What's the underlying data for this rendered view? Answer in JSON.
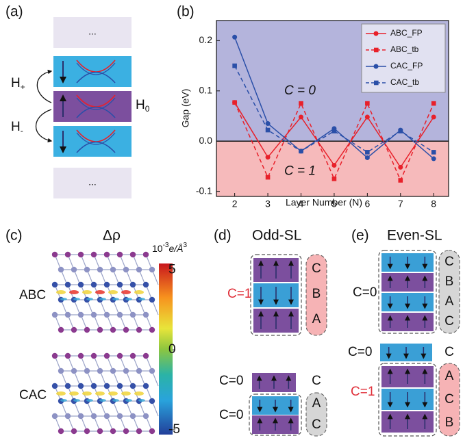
{
  "panel_a": {
    "label": "(a)",
    "top_ellipsis": "...",
    "bottom_ellipsis": "...",
    "h_plus": {
      "main": "H",
      "sub": "+"
    },
    "h_zero": {
      "main": "H",
      "sub": "0"
    },
    "h_minus": {
      "main": "H",
      "sub": "-"
    }
  },
  "chart_data": {
    "type": "line",
    "label": "(b)",
    "x_label": "Layer Number (N)",
    "y_label": "Gap (eV)",
    "x": [
      2,
      3,
      4,
      5,
      6,
      7,
      8
    ],
    "xlim": [
      1.45,
      8.45
    ],
    "xticks": [
      2,
      3,
      4,
      5,
      6,
      7,
      8
    ],
    "ylim": [
      -0.11,
      0.24
    ],
    "yticks": [
      -0.1,
      {
        "value": 0,
        "label": "0.0"
      },
      0.1,
      0.2
    ],
    "background_colors": {
      "above_zero": "#b4b4dc",
      "below_zero": "#f6babb"
    },
    "annotations": [
      "C = 0",
      "C = 1"
    ],
    "legend": "upper right",
    "series": [
      {
        "name": "ABC_FP",
        "color": "#e8202a",
        "dashed": false,
        "marker": "circle",
        "values": [
          0.077,
          -0.032,
          0.048,
          -0.048,
          0.048,
          -0.052,
          0.048
        ]
      },
      {
        "name": "ABC_tb",
        "color": "#e8202a",
        "dashed": true,
        "marker": "square",
        "values": [
          0.077,
          -0.072,
          0.075,
          -0.075,
          0.075,
          -0.078,
          0.075
        ]
      },
      {
        "name": "CAC_FP",
        "color": "#2a4fa8",
        "dashed": false,
        "marker": "circle",
        "values": [
          0.207,
          0.035,
          -0.02,
          0.025,
          -0.033,
          0.022,
          -0.035
        ]
      },
      {
        "name": "CAC_tb",
        "color": "#2a4fa8",
        "dashed": true,
        "marker": "square",
        "values": [
          0.15,
          0.022,
          -0.02,
          0.02,
          -0.022,
          0.02,
          -0.022
        ]
      }
    ]
  },
  "panel_c": {
    "label": "(c)",
    "title": "Δρ",
    "rows": [
      "ABC",
      "CAC"
    ],
    "colorbar": {
      "label_base": "10",
      "label_exp": "-3",
      "label_unit": "e/Å",
      "label_unit_exp": "3",
      "lim": [
        -5.3,
        5.4
      ],
      "ticks": [
        5,
        0,
        -5
      ]
    }
  },
  "panel_d": {
    "label": "(d)",
    "title": "Odd-SL",
    "top": {
      "chern": "C=1",
      "stacking": [
        "C",
        "B",
        "A"
      ]
    },
    "bottom": {
      "chern": [
        "C=0",
        "C=0"
      ],
      "stacking": [
        "C",
        "A",
        "C"
      ]
    }
  },
  "panel_e": {
    "label": "(e)",
    "title": "Even-SL",
    "top": {
      "chern": "C=0",
      "stacking": [
        "C",
        "B",
        "A",
        "C"
      ]
    },
    "bottom": {
      "chern": [
        "C=0",
        "C=1"
      ],
      "stacking": [
        "C",
        "A",
        "C",
        "B"
      ]
    }
  }
}
